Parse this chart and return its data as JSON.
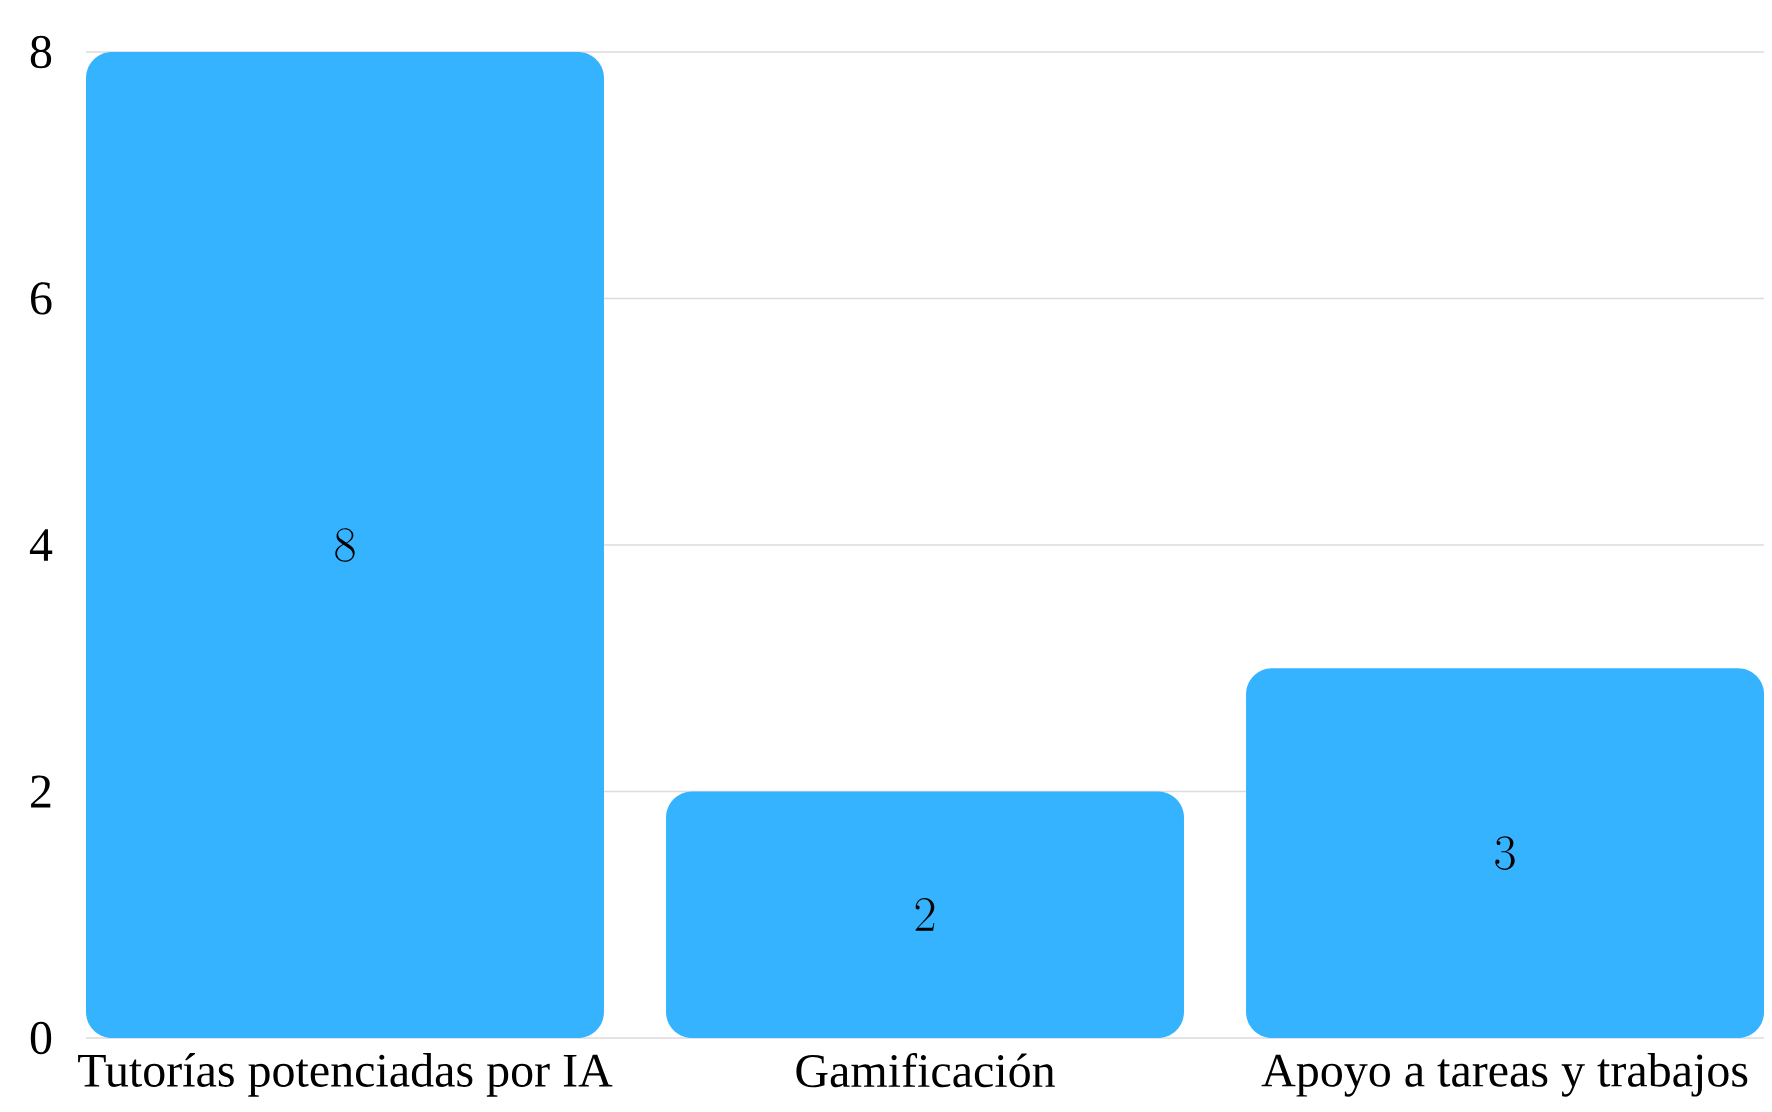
{
  "chart_data": {
    "type": "bar",
    "categories": [
      "Tutorías potenciadas por IA",
      "Gamificación",
      "Apoyo a tareas y trabajos"
    ],
    "values": [
      8,
      2,
      3
    ],
    "color": "#36b3ff",
    "ylim": [
      0,
      8
    ],
    "yticks": [
      0,
      2,
      4,
      6,
      8
    ],
    "grid": "y",
    "data_labels": true
  }
}
